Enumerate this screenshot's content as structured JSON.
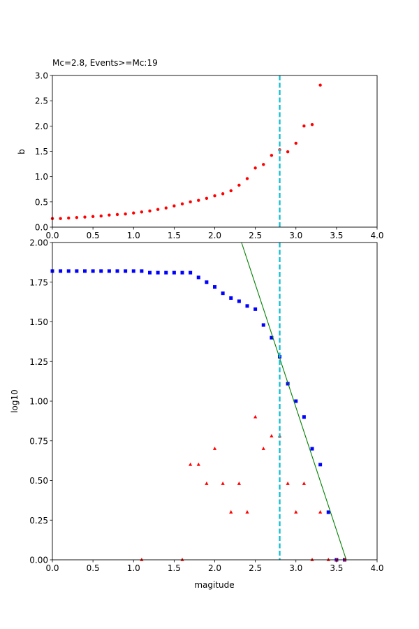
{
  "chart_data": [
    {
      "type": "scatter",
      "title": "Mc=2.8, Events>=Mc:19",
      "xlabel": "",
      "ylabel": "b",
      "xlim": [
        0,
        4.0
      ],
      "ylim": [
        0,
        3.0
      ],
      "xticks": [
        "0.0",
        "0.5",
        "1.0",
        "1.5",
        "2.0",
        "2.5",
        "3.0",
        "3.5",
        "4.0"
      ],
      "yticks": [
        "0.0",
        "0.5",
        "1.0",
        "1.5",
        "2.0",
        "2.5",
        "3.0"
      ],
      "grid": false,
      "series": [
        {
          "marker": "circle",
          "color": "#ff0000",
          "x": [
            0.0,
            0.1,
            0.2,
            0.3,
            0.4,
            0.5,
            0.6,
            0.7,
            0.8,
            0.9,
            1.0,
            1.1,
            1.2,
            1.3,
            1.4,
            1.5,
            1.6,
            1.7,
            1.8,
            1.9,
            2.0,
            2.1,
            2.2,
            2.3,
            2.4,
            2.5,
            2.6,
            2.7,
            2.8,
            2.9,
            3.0,
            3.1,
            3.2,
            3.3
          ],
          "y": [
            0.17,
            0.17,
            0.18,
            0.19,
            0.2,
            0.21,
            0.22,
            0.24,
            0.25,
            0.26,
            0.28,
            0.3,
            0.32,
            0.35,
            0.38,
            0.42,
            0.46,
            0.5,
            0.53,
            0.57,
            0.62,
            0.66,
            0.72,
            0.83,
            0.96,
            1.17,
            1.24,
            1.42,
            1.53,
            1.49,
            1.66,
            2.0,
            2.03,
            2.81
          ]
        }
      ],
      "vline": {
        "x": 2.8,
        "color": "#17becf",
        "style": "dashed"
      }
    },
    {
      "type": "scatter",
      "title": "",
      "xlabel": "magitude",
      "ylabel": "log10",
      "xlim": [
        0,
        4.0
      ],
      "ylim": [
        0,
        2.0
      ],
      "xticks": [
        "0.0",
        "0.5",
        "1.0",
        "1.5",
        "2.0",
        "2.5",
        "3.0",
        "3.5",
        "4.0"
      ],
      "yticks": [
        "0.00",
        "0.25",
        "0.50",
        "0.75",
        "1.00",
        "1.25",
        "1.50",
        "1.75",
        "2.00"
      ],
      "grid": false,
      "series": [
        {
          "marker": "square",
          "color": "#0000ff",
          "x": [
            0.0,
            0.1,
            0.2,
            0.3,
            0.4,
            0.5,
            0.6,
            0.7,
            0.8,
            0.9,
            1.0,
            1.1,
            1.2,
            1.3,
            1.4,
            1.5,
            1.6,
            1.7,
            1.8,
            1.9,
            2.0,
            2.1,
            2.2,
            2.3,
            2.4,
            2.5,
            2.6,
            2.7,
            2.8,
            2.9,
            3.0,
            3.1,
            3.2,
            3.3,
            3.4,
            3.5,
            3.6
          ],
          "y": [
            1.82,
            1.82,
            1.82,
            1.82,
            1.82,
            1.82,
            1.82,
            1.82,
            1.82,
            1.82,
            1.82,
            1.82,
            1.81,
            1.81,
            1.81,
            1.81,
            1.81,
            1.81,
            1.78,
            1.75,
            1.72,
            1.68,
            1.65,
            1.63,
            1.6,
            1.58,
            1.48,
            1.4,
            1.28,
            1.11,
            1.0,
            0.9,
            0.7,
            0.6,
            0.3,
            0.0,
            0.0
          ]
        },
        {
          "marker": "triangle",
          "color": "#ff0000",
          "x": [
            1.1,
            1.6,
            1.7,
            1.8,
            1.9,
            2.0,
            2.1,
            2.2,
            2.3,
            2.4,
            2.5,
            2.6,
            2.7,
            2.8,
            2.9,
            3.0,
            3.1,
            3.2,
            3.3,
            3.4,
            3.5,
            3.6
          ],
          "y": [
            0.0,
            0.0,
            0.6,
            0.6,
            0.48,
            0.7,
            0.48,
            0.3,
            0.48,
            0.3,
            0.9,
            0.7,
            0.78,
            0.78,
            0.48,
            0.3,
            0.48,
            0.0,
            0.3,
            0.0,
            0.0,
            0.0
          ]
        },
        {
          "marker": "line",
          "color": "#008000",
          "x": [
            2.33,
            3.62
          ],
          "y": [
            2.0,
            0.0
          ]
        }
      ],
      "vline": {
        "x": 2.8,
        "color": "#17becf",
        "style": "dashed"
      }
    }
  ]
}
